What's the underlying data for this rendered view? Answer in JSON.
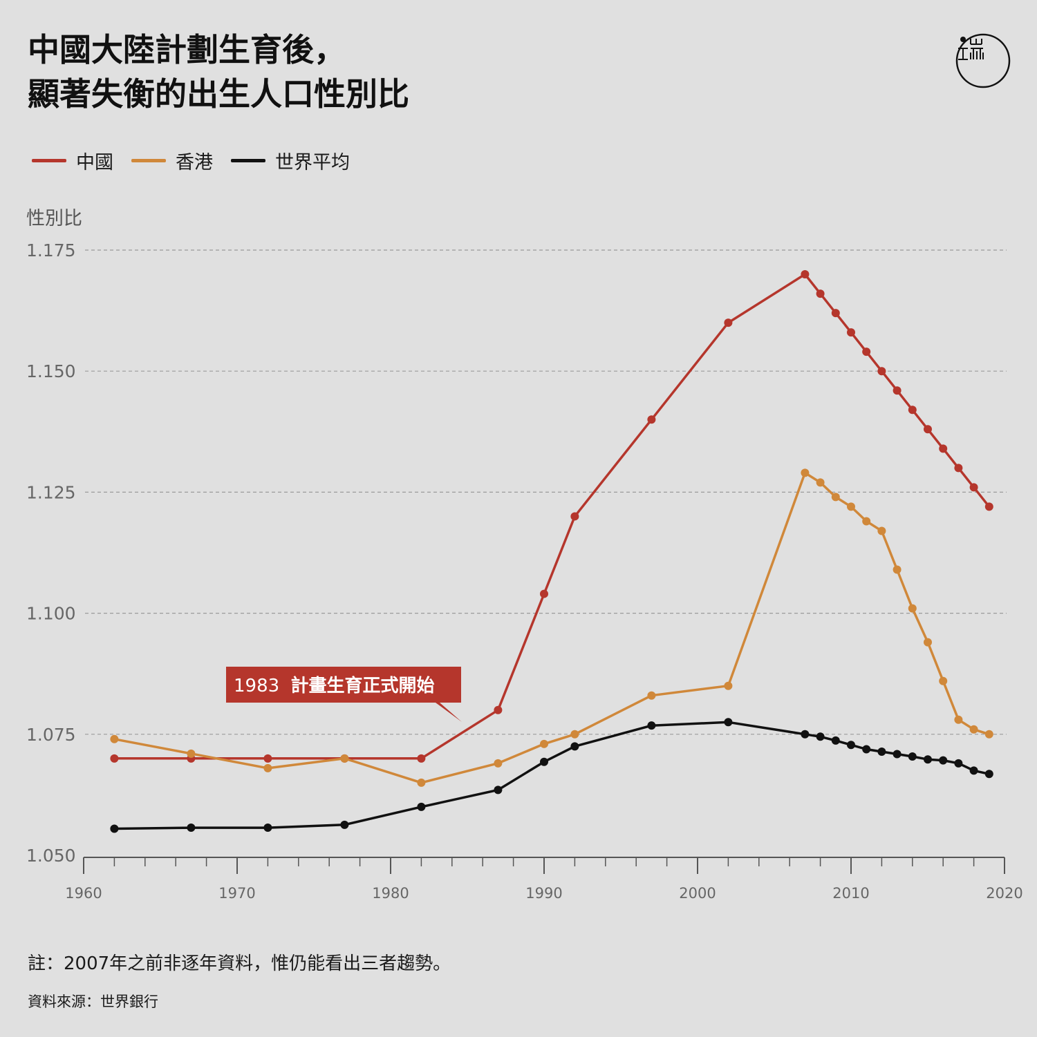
{
  "title": {
    "line1": "中國大陸計劃生育後，",
    "line2": "顯著失衡的出生人口性別比"
  },
  "logo": {
    "name": "端",
    "glyph_top": "山",
    "glyph_main": "而"
  },
  "colors": {
    "china": "#b5362c",
    "hongkong": "#d0883a",
    "world": "#111111",
    "background": "#e0e0e0",
    "grid": "#999999"
  },
  "chart_data": {
    "type": "line",
    "ylabel": "性別比",
    "ylim": [
      1.05,
      1.175
    ],
    "yticks": [
      1.05,
      1.075,
      1.1,
      1.125,
      1.15,
      1.175
    ],
    "ytick_labels": [
      "1.050",
      "1.075",
      "1.100",
      "1.125",
      "1.150",
      "1.175"
    ],
    "xlim": [
      1960,
      2020
    ],
    "xticks": [
      1960,
      1970,
      1980,
      1990,
      2000,
      2010,
      2020
    ],
    "grid": true,
    "legend_position": "top-left",
    "series": [
      {
        "name": "中國",
        "color": "#b5362c",
        "x": [
          1962,
          1967,
          1972,
          1977,
          1982,
          1987,
          1990,
          1992,
          1997,
          2002,
          2007,
          2008,
          2009,
          2010,
          2011,
          2012,
          2013,
          2014,
          2015,
          2016,
          2017,
          2018,
          2019
        ],
        "values": [
          1.07,
          1.07,
          1.07,
          1.07,
          1.07,
          1.08,
          1.104,
          1.12,
          1.14,
          1.16,
          1.17,
          1.166,
          1.162,
          1.158,
          1.154,
          1.15,
          1.146,
          1.142,
          1.138,
          1.134,
          1.13,
          1.126,
          1.122
        ]
      },
      {
        "name": "香港",
        "color": "#d0883a",
        "x": [
          1962,
          1967,
          1972,
          1977,
          1982,
          1987,
          1990,
          1992,
          1997,
          2002,
          2007,
          2008,
          2009,
          2010,
          2011,
          2012,
          2013,
          2014,
          2015,
          2016,
          2017,
          2018,
          2019
        ],
        "values": [
          1.074,
          1.071,
          1.068,
          1.07,
          1.065,
          1.069,
          1.073,
          1.075,
          1.083,
          1.085,
          1.129,
          1.127,
          1.124,
          1.122,
          1.119,
          1.117,
          1.109,
          1.101,
          1.094,
          1.086,
          1.078,
          1.076,
          1.075
        ]
      },
      {
        "name": "世界平均",
        "color": "#111111",
        "x": [
          1962,
          1967,
          1972,
          1977,
          1982,
          1987,
          1990,
          1992,
          1997,
          2002,
          2007,
          2008,
          2009,
          2010,
          2011,
          2012,
          2013,
          2014,
          2015,
          2016,
          2017,
          2018,
          2019
        ],
        "values": [
          1.0555,
          1.0557,
          1.0557,
          1.0563,
          1.06,
          1.0635,
          1.0693,
          1.0725,
          1.0768,
          1.0775,
          1.075,
          1.0745,
          1.0737,
          1.0728,
          1.0719,
          1.0714,
          1.0709,
          1.0704,
          1.0698,
          1.0696,
          1.069,
          1.0675,
          1.0668
        ]
      }
    ],
    "annotation": {
      "x": 1983,
      "year_text": "1983",
      "text": "計畫生育正式開始"
    }
  },
  "note": "註：2007年之前非逐年資料，惟仍能看出三者趨勢。",
  "source": "資料來源：世界銀行"
}
